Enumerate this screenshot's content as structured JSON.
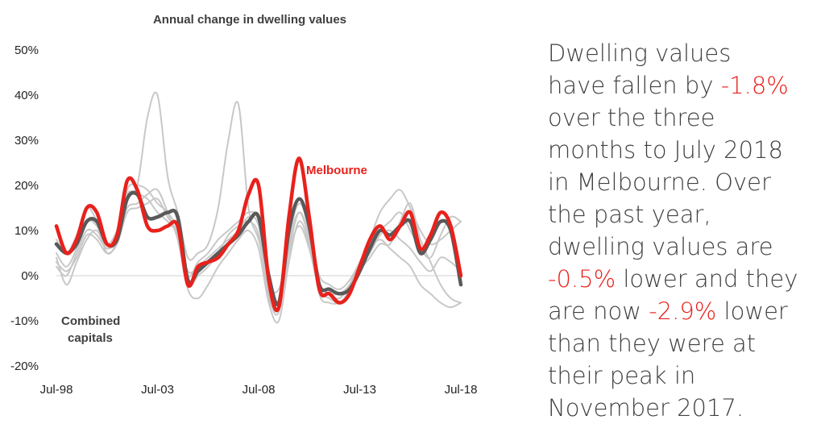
{
  "chart_data": {
    "type": "line",
    "title": "Annual change in dwelling values",
    "xlabel": "",
    "ylabel": "",
    "x_tick_labels": [
      "Jul-98",
      "Jul-03",
      "Jul-08",
      "Jul-13",
      "Jul-18"
    ],
    "x_range": [
      "Jul-98",
      "Jul-18"
    ],
    "y_tick_labels": [
      "50%",
      "40%",
      "30%",
      "20%",
      "10%",
      "0%",
      "-10%",
      "-20%"
    ],
    "ylim": [
      -20,
      50
    ],
    "grid": false,
    "zero_line": true,
    "x_dates": [
      "Jul-98",
      "Jan-99",
      "Jul-99",
      "Jan-00",
      "Jul-00",
      "Jan-01",
      "Jul-01",
      "Jan-02",
      "Jul-02",
      "Jan-03",
      "Jul-03",
      "Jan-04",
      "Jul-04",
      "Jan-05",
      "Jul-05",
      "Jan-06",
      "Jul-06",
      "Jan-07",
      "Jul-07",
      "Jan-08",
      "Jul-08",
      "Jan-09",
      "Jul-09",
      "Jan-10",
      "Jul-10",
      "Jan-11",
      "Jul-11",
      "Jan-12",
      "Jul-12",
      "Jan-13",
      "Jul-13",
      "Jan-14",
      "Jul-14",
      "Jan-15",
      "Jul-15",
      "Jan-16",
      "Jul-16",
      "Jan-17",
      "Jul-17",
      "Jan-18",
      "Jul-18"
    ],
    "series": [
      {
        "name": "Melbourne",
        "color": "#e8211c",
        "values": [
          11,
          5,
          8,
          15,
          14,
          7,
          9,
          21,
          19,
          11,
          10,
          11,
          11,
          -2,
          2,
          3,
          4,
          7,
          10,
          18,
          20,
          -1,
          -7,
          13,
          26,
          13,
          -3,
          -4,
          -6,
          -4,
          2,
          8,
          11,
          8,
          11,
          14,
          6,
          9,
          14,
          11,
          0
        ]
      },
      {
        "name": "Combined capitals",
        "color": "#595959",
        "values": [
          7,
          5,
          7,
          12,
          12,
          7,
          8,
          17,
          18,
          13,
          13,
          14,
          13,
          -1,
          1,
          3,
          5,
          7,
          9,
          12,
          13,
          0,
          -6,
          10,
          17,
          11,
          -2,
          -3,
          -4,
          -3,
          1,
          6,
          10,
          9,
          11,
          12,
          5,
          8,
          12,
          10,
          -2
        ]
      },
      {
        "name": "",
        "color": "#c8c8c8",
        "values": [
          4,
          -2,
          3,
          8,
          10,
          6,
          9,
          18,
          20,
          35,
          40,
          22,
          14,
          4,
          5,
          7,
          15,
          30,
          38,
          15,
          8,
          -2,
          -3,
          6,
          14,
          9,
          0,
          -2,
          -3,
          -1,
          3,
          8,
          14,
          17,
          19,
          15,
          10,
          7,
          8,
          10,
          12
        ]
      },
      {
        "name": "",
        "color": "#c8c8c8",
        "values": [
          8,
          5,
          9,
          15,
          12,
          5,
          8,
          19,
          20,
          19,
          16,
          14,
          10,
          0,
          3,
          5,
          8,
          10,
          12,
          14,
          12,
          -4,
          -8,
          8,
          16,
          10,
          -4,
          -6,
          -6,
          -4,
          1,
          4,
          7,
          7,
          12,
          16,
          8,
          3,
          -2,
          -5,
          -6
        ]
      },
      {
        "name": "",
        "color": "#c8c8c8",
        "values": [
          2,
          0,
          5,
          10,
          9,
          6,
          8,
          15,
          16,
          18,
          19,
          14,
          8,
          -3,
          -5,
          -2,
          2,
          5,
          8,
          10,
          6,
          -6,
          -10,
          3,
          12,
          7,
          -2,
          -4,
          -5,
          -2,
          2,
          6,
          8,
          6,
          4,
          2,
          -2,
          -4,
          -6,
          -7,
          -6
        ]
      },
      {
        "name": "",
        "color": "#c8c8c8",
        "values": [
          5,
          2,
          6,
          12,
          11,
          7,
          10,
          17,
          18,
          17,
          14,
          12,
          9,
          1,
          2,
          4,
          6,
          8,
          10,
          13,
          11,
          -3,
          -6,
          7,
          14,
          8,
          -3,
          -5,
          -6,
          -3,
          2,
          5,
          9,
          10,
          8,
          6,
          3,
          1,
          4,
          3,
          1
        ]
      },
      {
        "name": "",
        "color": "#c8c8c8",
        "values": [
          3,
          1,
          4,
          9,
          8,
          5,
          7,
          14,
          15,
          16,
          17,
          13,
          9,
          -2,
          0,
          2,
          5,
          9,
          11,
          12,
          9,
          -5,
          -7,
          5,
          11,
          6,
          -3,
          -4,
          -4,
          -2,
          3,
          7,
          10,
          12,
          14,
          10,
          6,
          4,
          9,
          13,
          12
        ]
      }
    ],
    "annotations": [
      "Melbourne",
      "Combined\ncapitals"
    ]
  },
  "annotations": {
    "melbourne": "Melbourne",
    "combined_line1": "Combined",
    "combined_line2": "capitals"
  },
  "commentary": {
    "l1": "Dwelling values",
    "l2a": "have fallen by ",
    "l2b": "-1.8%",
    "l3": "over the three",
    "l4": "months to July 2018",
    "l5": "in Melbourne.  Over",
    "l6": "the past year,",
    "l7": "dwelling values are",
    "l8a": "-0.5%",
    "l8b": " lower and they",
    "l9a": "are now ",
    "l9b": "-2.9%",
    "l9c": " lower",
    "l10": "than they were at",
    "l11": "their peak in",
    "l12": "November 2017."
  }
}
